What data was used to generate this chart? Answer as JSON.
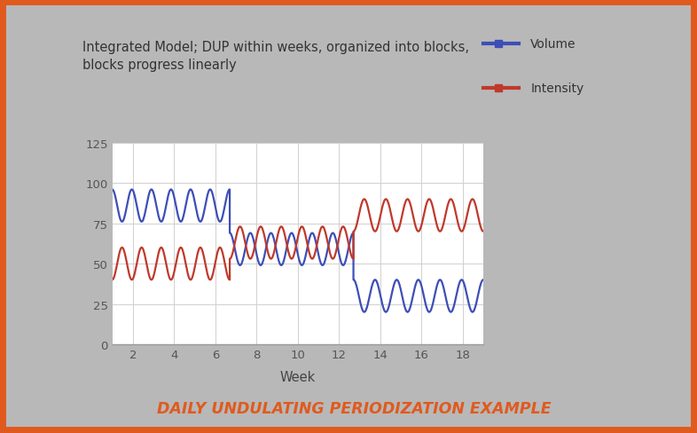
{
  "title": "Integrated Model; DUP within weeks, organized into blocks,\nblocks progress linearly",
  "xlabel": "Week",
  "xlim": [
    1,
    19
  ],
  "ylim": [
    0,
    125
  ],
  "yticks": [
    0,
    25,
    50,
    75,
    100,
    125
  ],
  "xticks": [
    2,
    4,
    6,
    8,
    10,
    12,
    14,
    16,
    18
  ],
  "volume_color": "#3d4eb8",
  "intensity_color": "#c0392b",
  "bg_outer": "#b8b8b8",
  "bg_card": "#ffffff",
  "border_color": "#e05a1e",
  "border_width": 10,
  "bottom_bg": "#000000",
  "bottom_text": "DAILY UNDULATING PERIODIZATION EXAMPLE",
  "bottom_text_color": "#e05a1e",
  "legend_volume": "Volume",
  "legend_intensity": "Intensity",
  "vol_blocks": [
    {
      "start": 1.0,
      "end": 6.7,
      "mid": 86,
      "amp": 10,
      "freq": 6.0,
      "phase": 1.5708
    },
    {
      "start": 6.7,
      "end": 12.7,
      "mid": 59,
      "amp": 10,
      "freq": 6.0,
      "phase": 1.5708
    },
    {
      "start": 12.7,
      "end": 19.0,
      "mid": 30,
      "amp": 10,
      "freq": 6.0,
      "phase": 1.5708
    }
  ],
  "int_blocks": [
    {
      "start": 1.0,
      "end": 6.7,
      "mid": 50,
      "amp": 10,
      "freq": 6.0,
      "phase": -1.5708
    },
    {
      "start": 6.7,
      "end": 12.7,
      "mid": 63,
      "amp": 10,
      "freq": 6.0,
      "phase": -1.5708
    },
    {
      "start": 12.7,
      "end": 19.0,
      "mid": 80,
      "amp": 10,
      "freq": 6.0,
      "phase": -1.5708
    }
  ]
}
